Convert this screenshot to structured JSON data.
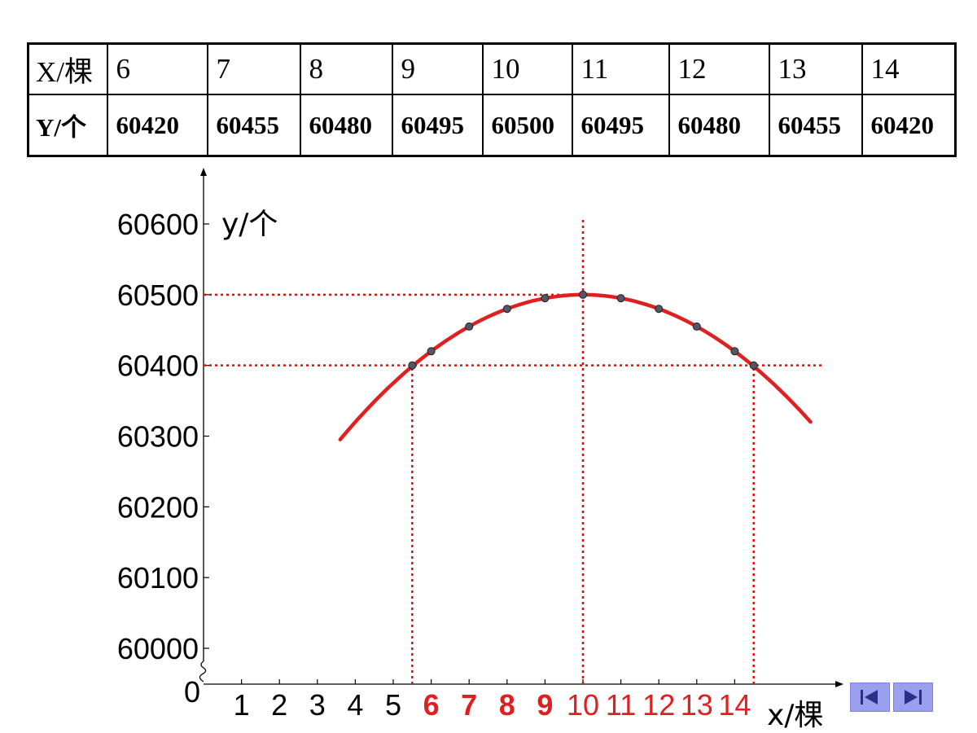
{
  "table": {
    "x_header": "X/棵",
    "y_header": "Y/个",
    "x_values": [
      "6",
      "7",
      "8",
      "9",
      "10",
      "11",
      "12",
      "13",
      "14"
    ],
    "y_values": [
      "60420",
      "60455",
      "60480",
      "60495",
      "60500",
      "60495",
      "60480",
      "60455",
      "60420"
    ]
  },
  "chart_data": {
    "type": "scatter",
    "xlabel": "x/棵",
    "ylabel": "y/个",
    "y_ticks": [
      "0",
      "60000",
      "60100",
      "60200",
      "60300",
      "60400",
      "60500",
      "60600"
    ],
    "x_ticks": [
      "1",
      "2",
      "3",
      "4",
      "5",
      "6",
      "7",
      "8",
      "9",
      "10",
      "11",
      "12",
      "13",
      "14"
    ],
    "x_tick_highlight_from": 6,
    "x_range": [
      0,
      16.6
    ],
    "y_range": [
      60000,
      60600
    ],
    "y_axis_break": true,
    "points": [
      {
        "x": 5.5,
        "y": 60400
      },
      {
        "x": 6,
        "y": 60420
      },
      {
        "x": 7,
        "y": 60455
      },
      {
        "x": 8,
        "y": 60480
      },
      {
        "x": 9,
        "y": 60495
      },
      {
        "x": 10,
        "y": 60500
      },
      {
        "x": 11,
        "y": 60495
      },
      {
        "x": 12,
        "y": 60480
      },
      {
        "x": 13,
        "y": 60455
      },
      {
        "x": 14,
        "y": 60420
      },
      {
        "x": 14.5,
        "y": 60400
      }
    ],
    "fit_curve": {
      "vertex_x": 10,
      "vertex_y": 60500,
      "a": -5,
      "x_from": 3.6,
      "x_to": 16.0
    },
    "reference_lines": {
      "horizontal": [
        {
          "y": 60500,
          "x_to": 10
        },
        {
          "y": 60400,
          "x_to": 16.3
        }
      ],
      "vertical": [
        {
          "x": 5.5,
          "y_to": 60400
        },
        {
          "x": 14.5,
          "y_to": 60400
        },
        {
          "x": 10,
          "y_to": 60610
        }
      ]
    },
    "colors": {
      "curve": "#e02020",
      "guides": "#dd1111",
      "axis": "#000000",
      "points": "#555566",
      "highlight_ticks": "#e02020"
    }
  },
  "nav": {
    "prev_icon": "skip-back-icon",
    "next_icon": "skip-forward-icon"
  }
}
